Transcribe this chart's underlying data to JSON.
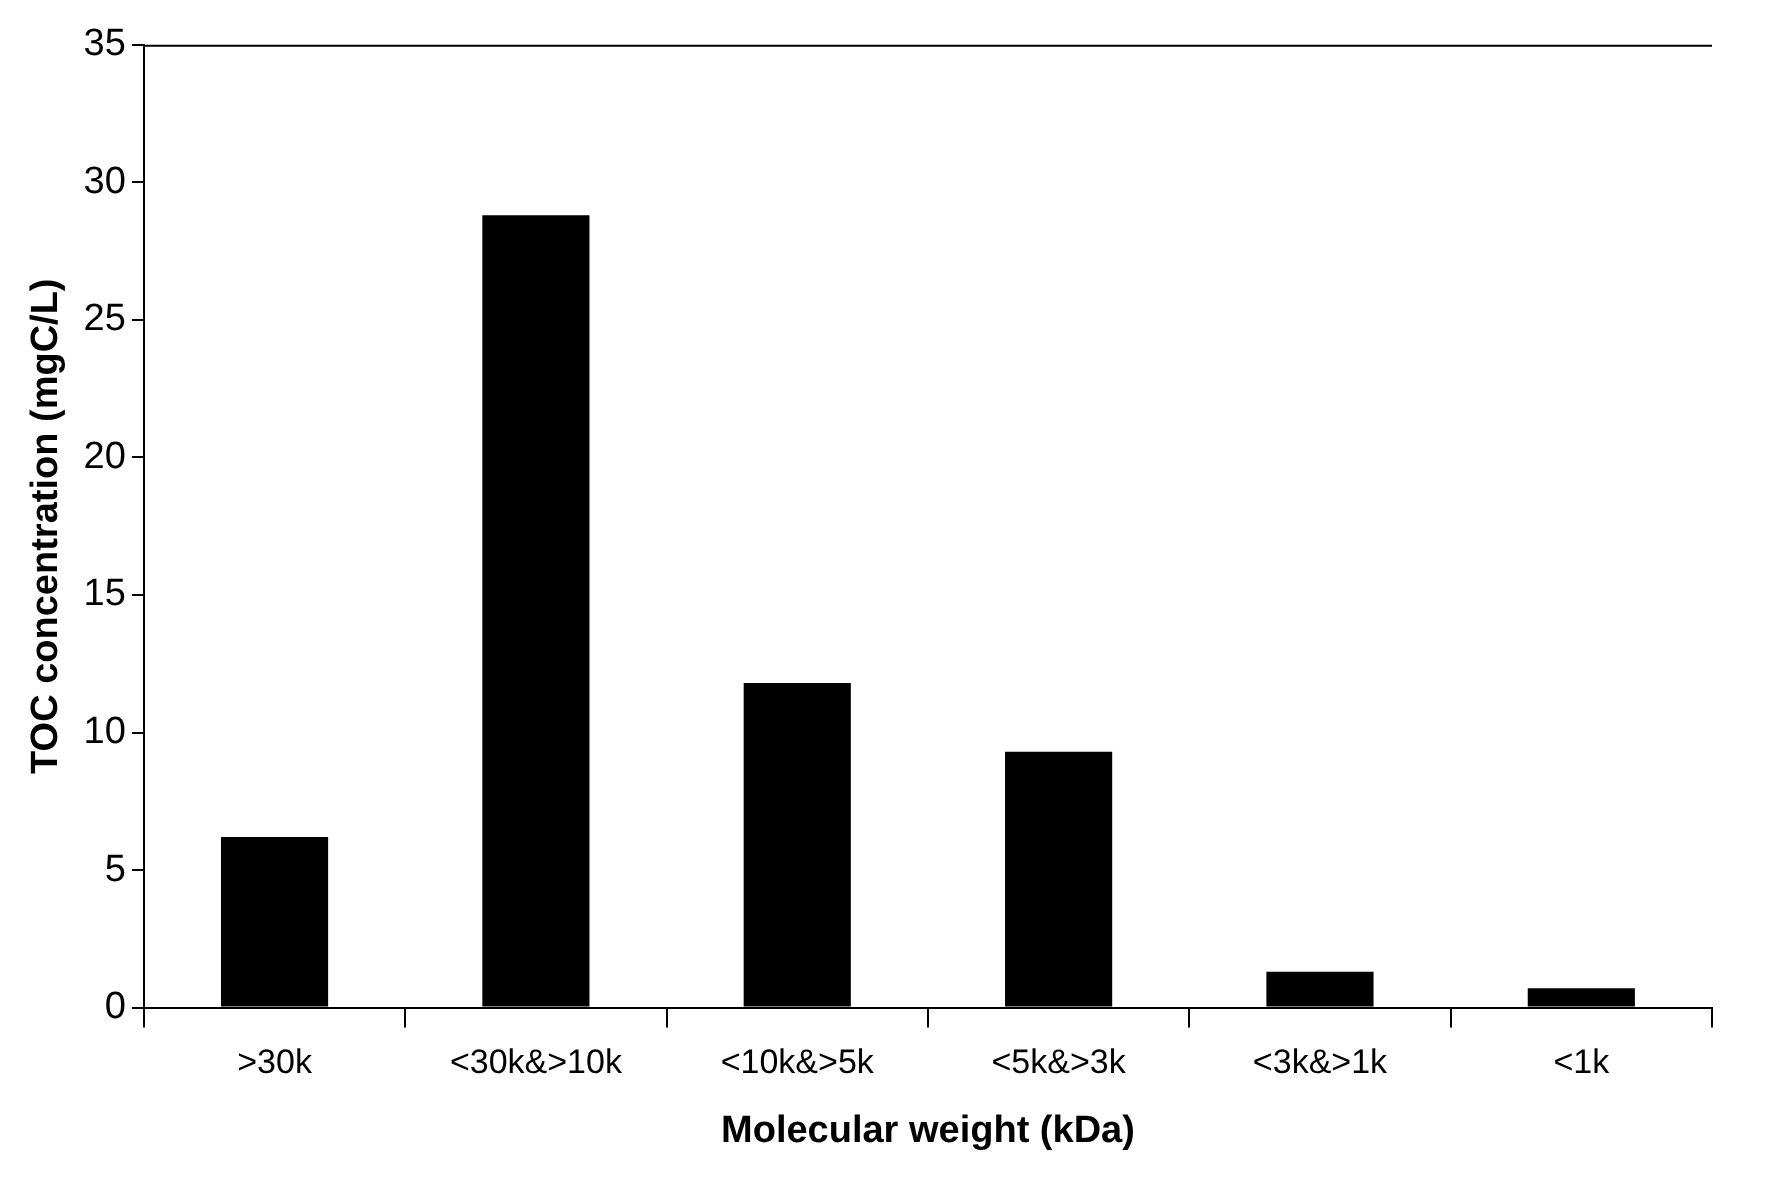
{
  "chart_data": {
    "type": "bar",
    "xlabel": "Molecular weight (kDa)",
    "ylabel": "TOC concentration (mgC/L)",
    "categories": [
      ">30k",
      "<30k&>10k",
      "<10k&>5k",
      "<5k&>3k",
      "<3k&>1k",
      "<1k"
    ],
    "values": [
      6.2,
      28.8,
      11.8,
      9.3,
      1.3,
      0.7
    ],
    "color": "#000000",
    "ylim": [
      0,
      35
    ],
    "yticks": [
      0,
      5,
      10,
      15,
      20,
      25,
      30,
      35
    ],
    "grid": false,
    "legend": false
  }
}
